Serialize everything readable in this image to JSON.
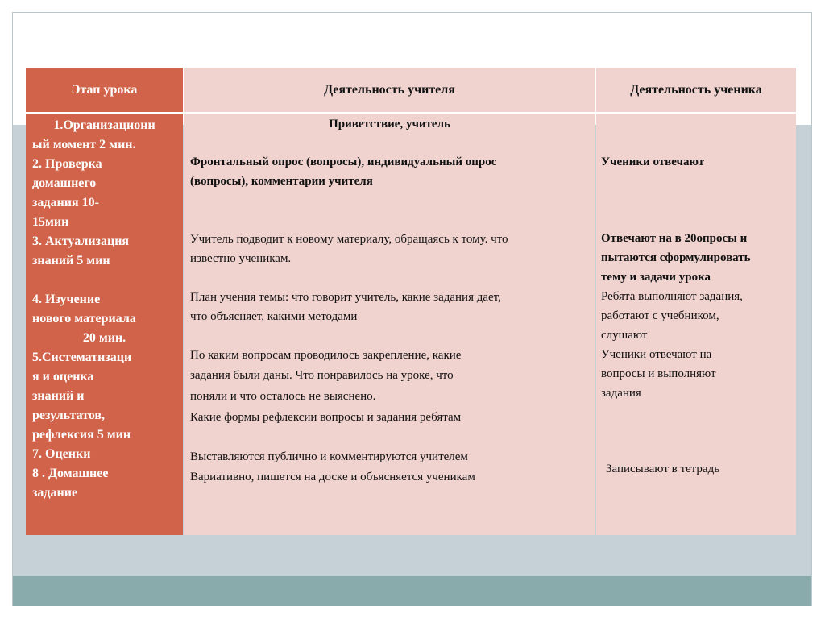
{
  "table": {
    "headers": [
      "Этап урока",
      "Деятельность учителя",
      "Деятельность ученика"
    ],
    "stages": [
      "1.Организационн",
      "ый момент 2 мин.",
      "2. Проверка",
      "домашнего",
      "задания 10-",
      "15мин",
      "3. Актуализация",
      "знаний 5 мин",
      "",
      "4. Изучение",
      "нового материала",
      "20 мин.",
      "5.Систематизаци",
      "я и оценка",
      "знаний и",
      "результатов,",
      "рефлексия 5 мин",
      "7. Оценки",
      "8 . Домашнее",
      "задание"
    ],
    "teacher": [
      "Приветствие, учитель",
      "Фронтальный опрос (вопросы), индивидуальный опрос",
      "(вопросы), комментарии учителя",
      "Учитель подводит к новому материалу, обращаясь к тому. что",
      "известно ученикам.",
      "План  учения темы: что говорит учитель, какие задания дает,",
      "что объясняет, какими методами",
      "По каким вопросам проводилось закрепление, какие",
      "задания были даны. Что понравилось на уроке, что",
      "поняли и что осталось не выяснено.",
      "Какие формы рефлексии вопросы и задания ребятам",
      "Выставляются публично и комментируются учителем",
      "Вариативно, пишется на доске и объясняется ученикам"
    ],
    "student": [
      "Ученики отвечают",
      "Отвечают на в 20опросы и",
      "пытаются сформулировать",
      "тему и задачи урока",
      "Ребята выполняют задания,",
      "работают с учебником,",
      "слушают",
      "Ученики отвечают на",
      "вопросы и выполняют",
      "задания",
      "Записывают в тетрадь"
    ]
  }
}
